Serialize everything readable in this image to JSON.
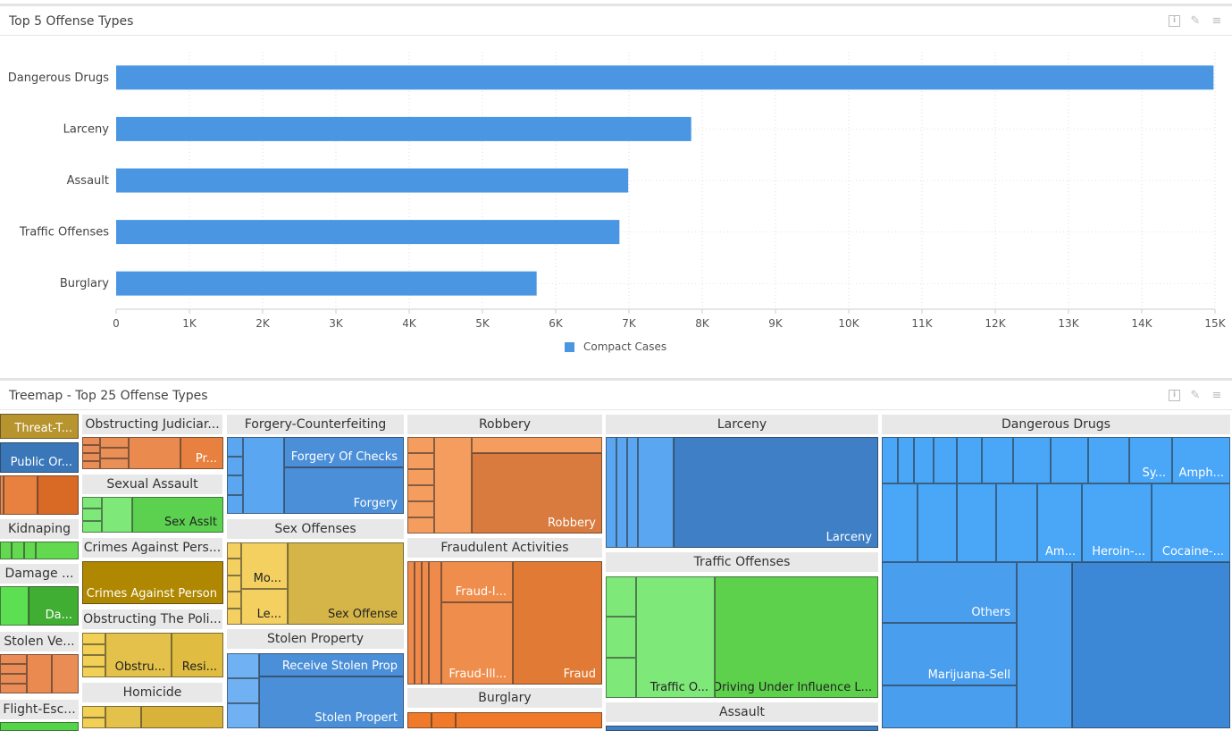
{
  "bar_panel": {
    "title": "Top 5 Offense Types",
    "tools": {
      "info": "i",
      "edit": "✎",
      "menu": "≡"
    }
  },
  "chart_data": {
    "type": "bar",
    "orientation": "horizontal",
    "title": "Top 5 Offense Types",
    "categories": [
      "Dangerous Drugs",
      "Larceny",
      "Assault",
      "Traffic Offenses",
      "Burglary"
    ],
    "series": [
      {
        "name": "Compact Cases",
        "values": [
          14980,
          7850,
          6990,
          6870,
          5740
        ]
      }
    ],
    "xlim": [
      0,
      15000
    ],
    "xticks": [
      "0",
      "1K",
      "2K",
      "3K",
      "4K",
      "5K",
      "6K",
      "7K",
      "8K",
      "9K",
      "10K",
      "11K",
      "12K",
      "13K",
      "14K",
      "15K"
    ],
    "color": "#4a96e3",
    "grid": true,
    "legend": "bottom-center"
  },
  "treemap_panel": {
    "title": "Treemap - Top 25 Offense Types",
    "tools": {
      "info": "i",
      "edit": "✎",
      "menu": "≡"
    },
    "groups": [
      {
        "header": "Threat-T...",
        "header_style": "cell",
        "color": "#b8942e",
        "labels": []
      },
      {
        "header": "Public Or...",
        "header_style": "cell",
        "color": "#3a77b8",
        "labels": []
      },
      {
        "header": "Kidnaping",
        "color": "#63d94f",
        "labels": []
      },
      {
        "header": "Damage ...",
        "color": "#4fce3e",
        "labels": [
          "Da..."
        ]
      },
      {
        "header": "Stolen Ve...",
        "color": "#e98c55",
        "labels": []
      },
      {
        "header": "Flight-Esc...",
        "color": "#55d44a",
        "labels": []
      },
      {
        "header": "Obstructing Judiciar...",
        "color": "#e98c55",
        "labels": [
          "Pr..."
        ]
      },
      {
        "header": "Sexual Assault",
        "color": "#5cd150",
        "labels": [
          "Sex Asslt"
        ]
      },
      {
        "header": "Crimes Against Pers...",
        "color": "#b08700",
        "labels": [
          "Crimes Against Person"
        ]
      },
      {
        "header": "Obstructing The Poli...",
        "color": "#e3c14a",
        "labels": [
          "Obstru...",
          "Resi..."
        ]
      },
      {
        "header": "Homicide",
        "color": "#d9b23a",
        "labels": []
      },
      {
        "header": "Forgery-Counterfeiting",
        "color": "#4a8fd8",
        "labels": [
          "Forgery Of Checks",
          "Forgery"
        ]
      },
      {
        "header": "Sex Offenses",
        "color": "#d6b548",
        "labels": [
          "Mo...",
          "Le...",
          "Sex Offense"
        ]
      },
      {
        "header": "Stolen Property",
        "color": "#4a8fd8",
        "labels": [
          "Receive Stolen Prop",
          "Stolen Propert"
        ]
      },
      {
        "header": "Robbery",
        "color": "#d97a3e",
        "labels": [
          "Robbery"
        ]
      },
      {
        "header": "Fraudulent Activities",
        "color": "#e07a34",
        "labels": [
          "Fraud-I...",
          "Fraud-Ill...",
          "Fraud"
        ]
      },
      {
        "header": "Burglary",
        "color": "#f07a2a",
        "labels": []
      },
      {
        "header": "Larceny",
        "color": "#3f7fc6",
        "labels": [
          "Larceny"
        ]
      },
      {
        "header": "Traffic Offenses",
        "color": "#5dd04c",
        "labels": [
          "Traffic O...",
          "Driving Under Influence L..."
        ]
      },
      {
        "header": "Assault",
        "color": "#3f7fc6",
        "labels": []
      },
      {
        "header": "Dangerous Drugs",
        "color": "#4aa6f7",
        "labels": [
          "Sy...",
          "Amph...",
          "Am...",
          "Heroin-...",
          "Cocaine-...",
          "Others",
          "Marijuana-Sell"
        ]
      }
    ]
  }
}
